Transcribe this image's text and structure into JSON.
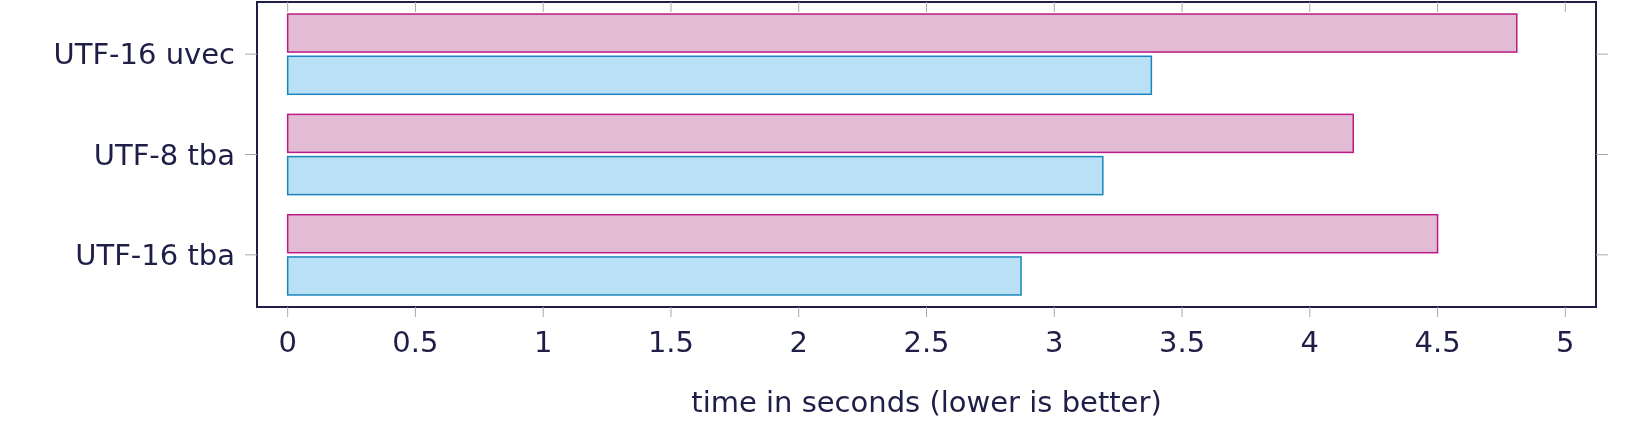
{
  "chart_data": {
    "type": "bar",
    "orientation": "horizontal",
    "xlabel": "time in seconds (lower is better)",
    "categories": [
      "UTF-16 uvec",
      "UTF-8 tba",
      "UTF-16 tba"
    ],
    "series": [
      {
        "color": "#e2bbd5",
        "values": [
          4.81,
          4.17,
          4.5
        ]
      },
      {
        "color": "#b9e0f4",
        "values": [
          3.38,
          3.19,
          2.87
        ]
      }
    ],
    "xlim": [
      -0.12,
      5.12
    ],
    "xticks": [
      0,
      0.5,
      1,
      1.5,
      2,
      2.5,
      3,
      3.5,
      4,
      4.5,
      5
    ]
  }
}
